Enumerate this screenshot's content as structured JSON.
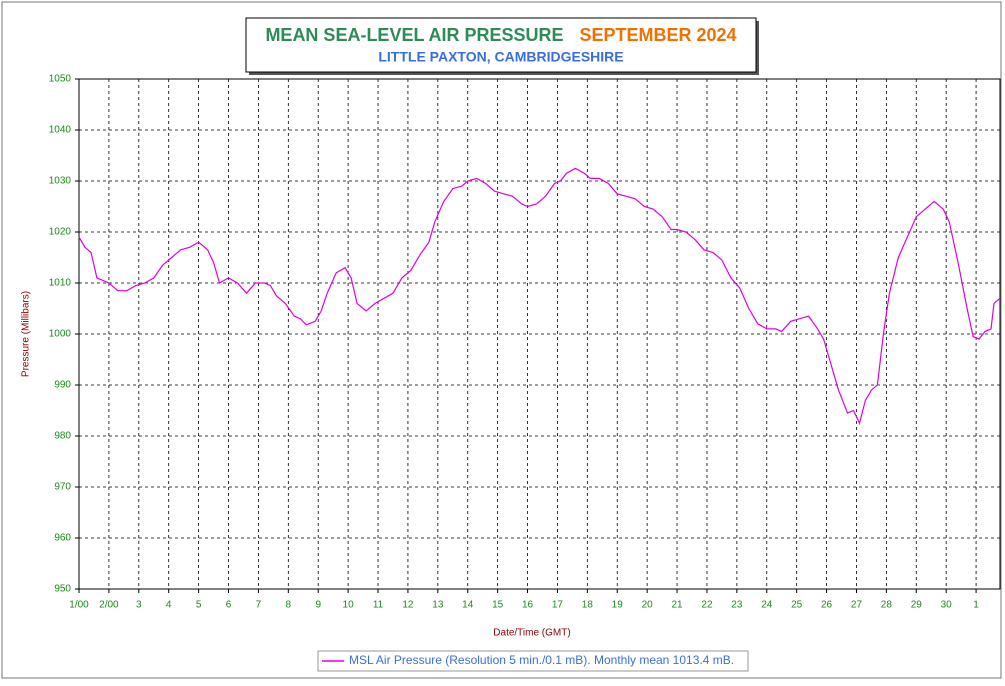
{
  "chart_data": {
    "type": "line",
    "title": "MEAN SEA-LEVEL AIR PRESSURE",
    "title_period": "SEPTEMBER 2024",
    "subtitle": "LITTLE PAXTON, CAMBRIDGESHIRE",
    "y_label": "Pressure (Millibars)",
    "x_label": "Date/Time (GMT)",
    "grid": true,
    "xlim": [
      0,
      30.8
    ],
    "ylim": [
      950,
      1050
    ],
    "yticks": [
      950,
      960,
      970,
      980,
      990,
      1000,
      1010,
      1020,
      1030,
      1040,
      1050
    ],
    "xticks": [
      {
        "value": 0,
        "label": "1/00"
      },
      {
        "value": 1,
        "label": "2/00"
      },
      {
        "value": 2,
        "label": "3"
      },
      {
        "value": 3,
        "label": "4"
      },
      {
        "value": 4,
        "label": "5"
      },
      {
        "value": 5,
        "label": "6"
      },
      {
        "value": 6,
        "label": "7"
      },
      {
        "value": 7,
        "label": "8"
      },
      {
        "value": 8,
        "label": "9"
      },
      {
        "value": 9,
        "label": "10"
      },
      {
        "value": 10,
        "label": "11"
      },
      {
        "value": 11,
        "label": "12"
      },
      {
        "value": 12,
        "label": "13"
      },
      {
        "value": 13,
        "label": "14"
      },
      {
        "value": 14,
        "label": "15"
      },
      {
        "value": 15,
        "label": "16"
      },
      {
        "value": 16,
        "label": "17"
      },
      {
        "value": 17,
        "label": "18"
      },
      {
        "value": 18,
        "label": "19"
      },
      {
        "value": 19,
        "label": "20"
      },
      {
        "value": 20,
        "label": "21"
      },
      {
        "value": 21,
        "label": "22"
      },
      {
        "value": 22,
        "label": "23"
      },
      {
        "value": 23,
        "label": "24"
      },
      {
        "value": 24,
        "label": "25"
      },
      {
        "value": 25,
        "label": "26"
      },
      {
        "value": 26,
        "label": "27"
      },
      {
        "value": 27,
        "label": "28"
      },
      {
        "value": 28,
        "label": "29"
      },
      {
        "value": 29,
        "label": "30"
      },
      {
        "value": 30,
        "label": "1"
      }
    ],
    "x": [
      0,
      0.2,
      0.4,
      0.6,
      0.8,
      1.0,
      1.3,
      1.6,
      1.9,
      2.2,
      2.5,
      2.8,
      3.1,
      3.4,
      3.7,
      4.0,
      4.3,
      4.5,
      4.7,
      5.0,
      5.3,
      5.6,
      5.9,
      6.2,
      6.4,
      6.6,
      6.9,
      7.2,
      7.4,
      7.6,
      7.9,
      8.1,
      8.3,
      8.6,
      8.9,
      9.1,
      9.3,
      9.6,
      9.9,
      10.2,
      10.5,
      10.8,
      11.1,
      11.4,
      11.7,
      11.9,
      12.2,
      12.5,
      12.8,
      13.0,
      13.3,
      13.6,
      13.9,
      14.2,
      14.5,
      14.8,
      15.0,
      15.3,
      15.6,
      15.9,
      16.1,
      16.3,
      16.6,
      16.9,
      17.1,
      17.4,
      17.7,
      18.0,
      18.3,
      18.6,
      18.9,
      19.2,
      19.5,
      19.8,
      20.0,
      20.3,
      20.6,
      20.9,
      21.2,
      21.5,
      21.8,
      22.1,
      22.4,
      22.7,
      23.0,
      23.3,
      23.5,
      23.8,
      24.1,
      24.4,
      24.7,
      24.9,
      25.1,
      25.4,
      25.7,
      25.9,
      26.1,
      26.3,
      26.5,
      26.7,
      26.9,
      27.1,
      27.4,
      27.7,
      28.0,
      28.3,
      28.6,
      28.9,
      29.1,
      29.4,
      29.7,
      29.9,
      30.1,
      30.3,
      30.5,
      30.6,
      30.8
    ],
    "series": [
      {
        "name": "MSL Air Pressure (Resolution 5 min./0.1 mB). Monthly mean 1013.4 mB.",
        "color": "#e000e0",
        "values": [
          1019,
          1017,
          1016,
          1011,
          1010.5,
          1010,
          1008.5,
          1008.5,
          1009.5,
          1010,
          1011,
          1013.5,
          1015,
          1016.5,
          1017,
          1018,
          1016.5,
          1014,
          1010,
          1011,
          1010,
          1008,
          1010,
          1010,
          1009.5,
          1007.5,
          1006,
          1003.5,
          1003,
          1001.8,
          1002.5,
          1004.5,
          1008,
          1012,
          1013,
          1011,
          1006,
          1004.5,
          1006,
          1007,
          1008,
          1011,
          1012.5,
          1015.5,
          1018,
          1022,
          1026,
          1028.5,
          1029,
          1030,
          1030.5,
          1029.5,
          1028,
          1027.5,
          1027,
          1025.5,
          1025,
          1025.5,
          1027,
          1029.5,
          1030,
          1031.5,
          1032.5,
          1031.5,
          1030.5,
          1030.5,
          1029.5,
          1027.5,
          1027,
          1026.5,
          1025,
          1024.5,
          1023,
          1020.5,
          1020.5,
          1020,
          1018.5,
          1016.5,
          1016,
          1014.5,
          1011,
          1009,
          1005,
          1002,
          1001,
          1001,
          1000.5,
          1002.5,
          1003,
          1003.5,
          1001,
          999,
          995,
          989,
          984.5,
          985,
          982.5,
          987,
          989,
          990,
          1000,
          1008,
          1015,
          1019,
          1023,
          1024.5,
          1026,
          1024.5,
          1022,
          1014,
          1005,
          999.5,
          999,
          1000.5,
          1001,
          1006,
          1007
        ]
      }
    ]
  }
}
